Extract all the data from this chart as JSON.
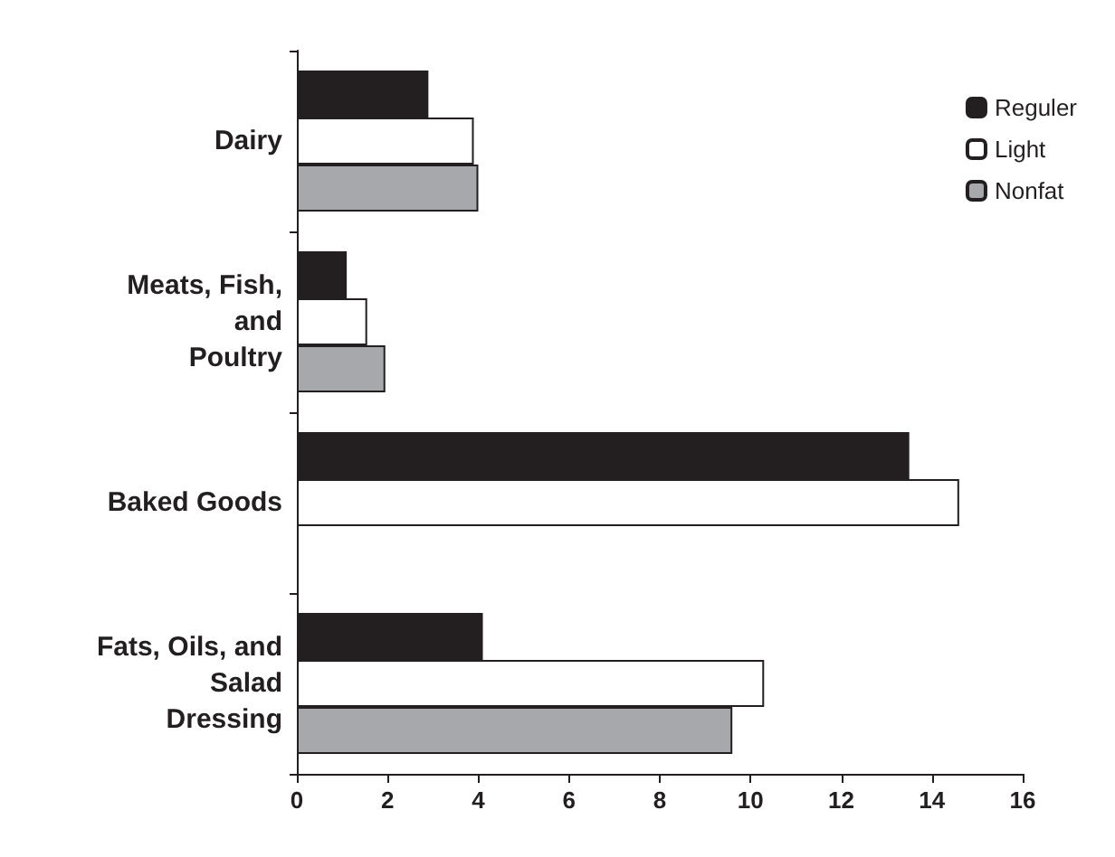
{
  "chart_data": {
    "type": "bar",
    "orientation": "horizontal",
    "categories": [
      "Dairy",
      "Meats, Fish,\nand\nPoultry",
      "Baked Goods",
      "Fats, Oils, and\nSalad\nDressing"
    ],
    "series": [
      {
        "name": "Reguler",
        "color": "#231f20",
        "values": [
          2.9,
          1.1,
          13.5,
          4.1
        ]
      },
      {
        "name": "Light",
        "color": "#ffffff",
        "values": [
          3.9,
          1.55,
          14.6,
          10.3
        ]
      },
      {
        "name": "Nonfat",
        "color": "#a6a8ab",
        "values": [
          4.0,
          1.95,
          null,
          9.6
        ]
      }
    ],
    "xlim": [
      0,
      16
    ],
    "xticks": [
      0,
      2,
      4,
      6,
      8,
      10,
      12,
      14,
      16
    ],
    "grid": false,
    "legend": "top right"
  }
}
